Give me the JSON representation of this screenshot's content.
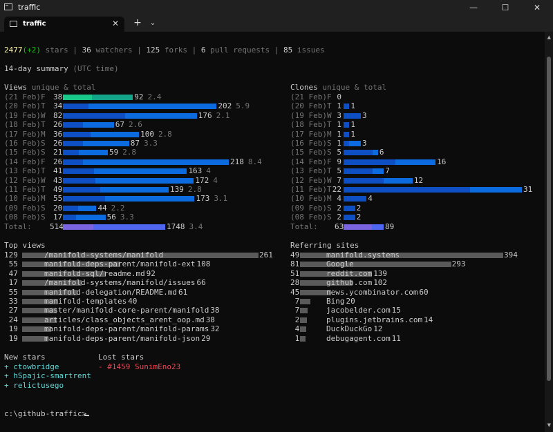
{
  "window": {
    "title": "traffic",
    "minimize": "—",
    "maximize": "☐",
    "close": "✕"
  },
  "tab": {
    "label": "traffic",
    "close": "✕",
    "new_tab": "+",
    "dropdown": "⌄"
  },
  "colors": {
    "bg": "#0c0c0c",
    "views_unique": "#0f4fc4",
    "views_total": "#0d6be0",
    "peak": "#13a58a",
    "total_unique": "#7a64e0",
    "total_total": "#4f67f0",
    "ref_bar": "#5a5a5a"
  },
  "header": {
    "stars": "2477",
    "stars_delta": "(+2)",
    "stars_label": " stars | ",
    "watchers": "36",
    "watchers_label": " watchers | ",
    "forks": "125",
    "forks_label": " forks | ",
    "prs": "6",
    "prs_label": " pull requests | ",
    "issues": "85",
    "issues_label": " issues"
  },
  "summary": {
    "title": "14-day summary",
    "sub": "(UTC time)"
  },
  "views": {
    "heading": "Views",
    "sub": "unique & total",
    "rows": [
      {
        "date": "(21 Feb)F",
        "unique": 38,
        "total": 92,
        "ratio": "2.4"
      },
      {
        "date": "(20 Feb)T",
        "unique": 34,
        "total": 202,
        "ratio": "5.9"
      },
      {
        "date": "(19 Feb)W",
        "unique": 82,
        "total": 176,
        "ratio": "2.1"
      },
      {
        "date": "(18 Feb)T",
        "unique": 26,
        "total": 67,
        "ratio": "2.6"
      },
      {
        "date": "(17 Feb)M",
        "unique": 36,
        "total": 100,
        "ratio": "2.8"
      },
      {
        "date": "(16 Feb)S",
        "unique": 26,
        "total": 87,
        "ratio": "3.3"
      },
      {
        "date": "(15 Feb)S",
        "unique": 21,
        "total": 59,
        "ratio": "2.8"
      },
      {
        "date": "(14 Feb)F",
        "unique": 26,
        "total": 218,
        "ratio": "8.4"
      },
      {
        "date": "(13 Feb)T",
        "unique": 41,
        "total": 163,
        "ratio": "4"
      },
      {
        "date": "(12 Feb)W",
        "unique": 43,
        "total": 172,
        "ratio": "4"
      },
      {
        "date": "(11 Feb)T",
        "unique": 49,
        "total": 139,
        "ratio": "2.8"
      },
      {
        "date": "(10 Feb)M",
        "unique": 55,
        "total": 173,
        "ratio": "3.1"
      },
      {
        "date": "(09 Feb)S",
        "unique": 20,
        "total": 44,
        "ratio": "2.2"
      },
      {
        "date": "(08 Feb)S",
        "unique": 17,
        "total": 56,
        "ratio": "3.3"
      }
    ],
    "total_label": "Total:",
    "total_unique": 514,
    "total_total": 1748,
    "total_ratio": "3.4"
  },
  "clones": {
    "heading": "Clones",
    "sub": "unique & total",
    "rows": [
      {
        "date": "(21 Feb)F",
        "unique": 0,
        "total": 0
      },
      {
        "date": "(20 Feb)T",
        "unique": 1,
        "total": 1
      },
      {
        "date": "(19 Feb)W",
        "unique": 3,
        "total": 3
      },
      {
        "date": "(18 Feb)T",
        "unique": 1,
        "total": 1
      },
      {
        "date": "(17 Feb)M",
        "unique": 1,
        "total": 1
      },
      {
        "date": "(16 Feb)S",
        "unique": 1,
        "total": 3
      },
      {
        "date": "(15 Feb)S",
        "unique": 5,
        "total": 6
      },
      {
        "date": "(14 Feb)F",
        "unique": 9,
        "total": 16
      },
      {
        "date": "(13 Feb)T",
        "unique": 5,
        "total": 7
      },
      {
        "date": "(12 Feb)W",
        "unique": 7,
        "total": 12
      },
      {
        "date": "(11 Feb)T",
        "unique": 22,
        "total": 31
      },
      {
        "date": "(10 Feb)M",
        "unique": 4,
        "total": 4
      },
      {
        "date": "(09 Feb)S",
        "unique": 2,
        "total": 2
      },
      {
        "date": "(08 Feb)S",
        "unique": 2,
        "total": 2
      }
    ],
    "total_label": "Total:",
    "total_unique": 63,
    "total_total": 89
  },
  "top_views": {
    "heading": "Top views",
    "rows": [
      {
        "unique": "129",
        "path": "/manifold-systems/manifold",
        "total": "261"
      },
      {
        "unique": "55",
        "path": "manifold-deps-parent/manifold-ext",
        "total": "108"
      },
      {
        "unique": "47",
        "path": "manifold-sql/readme.md",
        "total": "92"
      },
      {
        "unique": "17",
        "path": "/manifold-systems/manifold/issues",
        "total": "66"
      },
      {
        "unique": "55",
        "path": "manifold-delegation/README.md",
        "total": "61"
      },
      {
        "unique": "33",
        "path": "manifold-templates",
        "total": "40"
      },
      {
        "unique": "27",
        "path": "master/manifold-core-parent/manifold",
        "total": "38"
      },
      {
        "unique": "24",
        "path": "articles/class_objects_arent_oop.md",
        "total": "38"
      },
      {
        "unique": "19",
        "path": "manifold-deps-parent/manifold-params",
        "total": "32"
      },
      {
        "unique": "19",
        "path": "manifold-deps-parent/manifold-json",
        "total": "29"
      }
    ]
  },
  "referring": {
    "heading": "Referring sites",
    "rows": [
      {
        "unique": "49",
        "site": "manifold.systems",
        "total": "394"
      },
      {
        "unique": "81",
        "site": "Google",
        "total": "293"
      },
      {
        "unique": "51",
        "site": "reddit.com",
        "total": "139"
      },
      {
        "unique": "28",
        "site": "github.com",
        "total": "102"
      },
      {
        "unique": "45",
        "site": "news.ycombinator.com",
        "total": "60"
      },
      {
        "unique": "7",
        "site": "Bing",
        "total": "20"
      },
      {
        "unique": "7",
        "site": "jacobelder.com",
        "total": "15"
      },
      {
        "unique": "2",
        "site": "plugins.jetbrains.com",
        "total": "14"
      },
      {
        "unique": "4",
        "site": "DuckDuckGo",
        "total": "12"
      },
      {
        "unique": "1",
        "site": "debugagent.com",
        "total": "11"
      }
    ]
  },
  "new_stars": {
    "heading": "New stars",
    "items": [
      "+ ctowbridge",
      "+ hSpajic-smartrent",
      "+ relictusego"
    ]
  },
  "lost_stars": {
    "heading": "Lost stars",
    "items": [
      "- #1459 SunimEno23"
    ]
  },
  "prompt": {
    "text": "c:\\github-traffic>"
  }
}
